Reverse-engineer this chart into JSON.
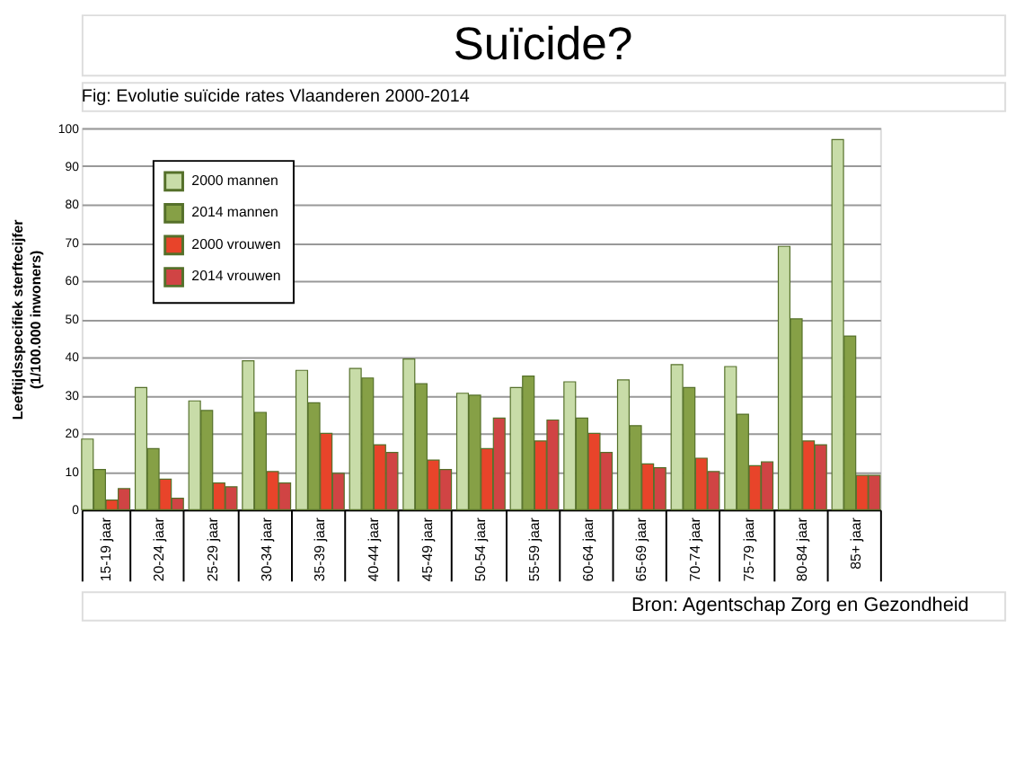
{
  "chart_data": {
    "type": "bar",
    "title": "Suïcide?",
    "subtitle": "Fig: Evolutie suïcide rates Vlaanderen 2000-2014",
    "ylabel": [
      "Leeftijdsspecifiek sterftecijfer",
      "(1/100.000 inwoners)"
    ],
    "categories": [
      "15-19 jaar",
      "20-24 jaar",
      "25-29 jaar",
      "30-34 jaar",
      "35-39 jaar",
      "40-44 jaar",
      "45-49 jaar",
      "50-54 jaar",
      "55-59 jaar",
      "60-64 jaar",
      "65-69 jaar",
      "70-74 jaar",
      "75-79 jaar",
      "80-84 jaar",
      "85+ jaar"
    ],
    "series": [
      {
        "name": "2000 mannen",
        "color": "#c8dca8",
        "values": [
          18.5,
          32,
          28.5,
          39,
          36.5,
          37,
          39.5,
          30.5,
          32,
          33.5,
          34,
          38,
          37.5,
          69,
          97
        ]
      },
      {
        "name": "2014 mannen",
        "color": "#86a046",
        "values": [
          10.5,
          16,
          26,
          25.5,
          28,
          34.5,
          33,
          30,
          35,
          24,
          22,
          32,
          25,
          50,
          45.5
        ]
      },
      {
        "name": "2000 vrouwen",
        "color": "#e8442a",
        "values": [
          2.5,
          8,
          7,
          10,
          20,
          17,
          13,
          16,
          18,
          20,
          12,
          13.5,
          11.5,
          18,
          9
        ]
      },
      {
        "name": "2014 vrouwen",
        "color": "#d04444",
        "values": [
          5.5,
          3,
          6,
          7,
          9.5,
          15,
          10.5,
          24,
          23.5,
          15,
          11,
          10,
          12.5,
          17,
          9
        ]
      }
    ],
    "ylim": [
      0,
      100
    ],
    "yticks": [
      0,
      10,
      20,
      30,
      40,
      50,
      60,
      70,
      80,
      90,
      100
    ],
    "grid": "y",
    "legend": "top left",
    "annotations": [
      "Bron: Agentschap Zorg en Gezondheid"
    ]
  }
}
